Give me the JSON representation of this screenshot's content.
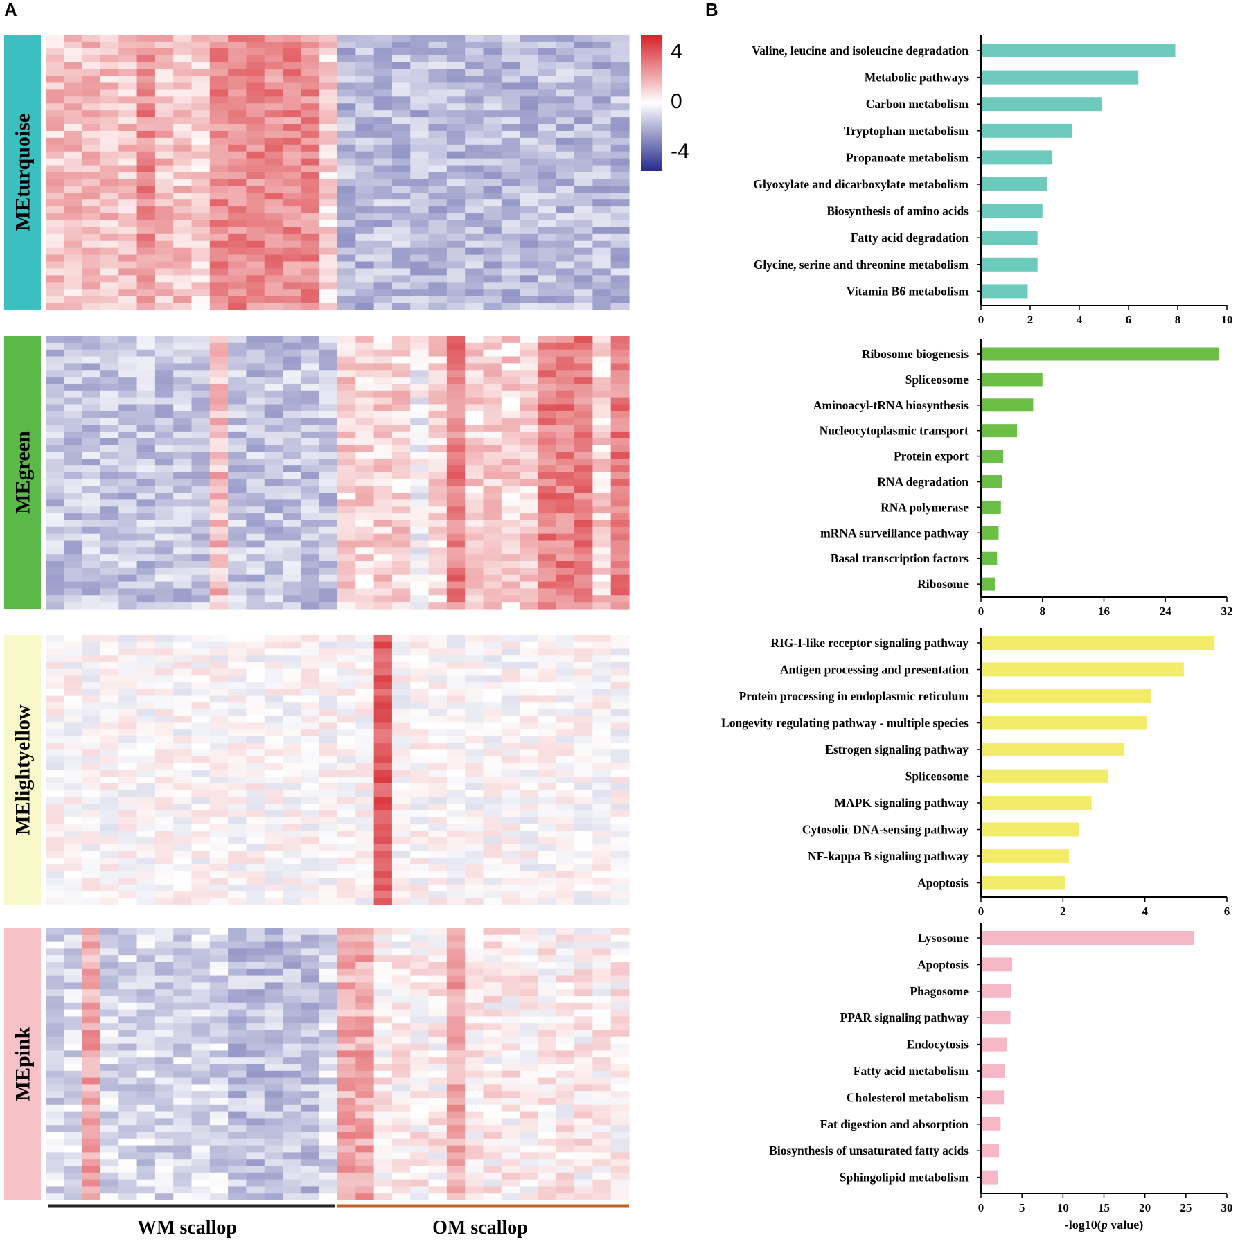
{
  "panels": {
    "a_letter": "A",
    "b_letter": "B"
  },
  "heatmap": {
    "colorbar": {
      "ticks": [
        "4",
        "0",
        "-4"
      ],
      "values": [
        4,
        0,
        -4
      ],
      "range": [
        -5,
        5
      ]
    },
    "group_labels": [
      "WM scallop",
      "OM scallop"
    ],
    "group_colors": [
      "#222222",
      "#c0622a"
    ],
    "modules": [
      {
        "name": "MEturquoise",
        "color": "#3bbfc0",
        "pattern": "WM high, OM low"
      },
      {
        "name": "MEgreen",
        "color": "#5ab947",
        "pattern": "WM low, OM high"
      },
      {
        "name": "MElightyellow",
        "color": "#f8f8c8",
        "pattern": "single OM sample high"
      },
      {
        "name": "MEpink",
        "color": "#f7c2c7",
        "pattern": "mixed"
      }
    ]
  },
  "chart_data": [
    {
      "type": "bar",
      "orientation": "horizontal",
      "module": "MEturquoise",
      "color": "#6dcbbe",
      "categories": [
        "Valine, leucine and isoleucine degradation",
        "Metabolic pathways",
        "Carbon metabolism",
        "Tryptophan metabolism",
        "Propanoate metabolism",
        "Glyoxylate and dicarboxylate metabolism",
        "Biosynthesis of amino acids",
        "Fatty acid degradation",
        "Glycine, serine and threonine metabolism",
        "Vitamin B6 metabolism"
      ],
      "values": [
        7.9,
        6.4,
        4.9,
        3.7,
        2.9,
        2.7,
        2.5,
        2.3,
        2.3,
        1.9
      ],
      "xlim": [
        0,
        10
      ],
      "xticks": [
        0,
        2,
        4,
        6,
        8,
        10
      ],
      "xtick_labels": [
        "0",
        "2",
        "4",
        "6",
        "8",
        "10"
      ],
      "xlabel": ""
    },
    {
      "type": "bar",
      "orientation": "horizontal",
      "module": "MEgreen",
      "color": "#6cbf45",
      "categories": [
        "Ribosome biogenesis",
        "Spliceosome",
        "Aminoacyl-tRNA biosynthesis",
        "Nucleocytoplasmic transport",
        "Protein export",
        "RNA degradation",
        "RNA polymerase",
        "mRNA surveillance pathway",
        "Basal transcription factors",
        "Ribosome"
      ],
      "values": [
        31.0,
        8.0,
        6.8,
        4.7,
        2.9,
        2.7,
        2.6,
        2.3,
        2.1,
        1.8
      ],
      "xlim": [
        0,
        32
      ],
      "xticks": [
        0,
        8,
        16,
        24,
        32
      ],
      "xtick_labels": [
        "0",
        "8",
        "16",
        "24",
        "32"
      ],
      "xlabel": ""
    },
    {
      "type": "bar",
      "orientation": "horizontal",
      "module": "MElightyellow",
      "color": "#f3ec6a",
      "categories": [
        "RIG-I-like receptor signaling pathway",
        "Antigen processing and presentation",
        "Protein processing in endoplasmic reticulum",
        "Longevity regulating pathway - multiple species",
        "Estrogen signaling pathway",
        "Spliceosome",
        "MAPK signaling pathway",
        "Cytosolic DNA-sensing pathway",
        "NF-kappa B signaling pathway",
        "Apoptosis"
      ],
      "values": [
        5.7,
        4.95,
        4.15,
        4.05,
        3.5,
        3.1,
        2.7,
        2.4,
        2.15,
        2.05
      ],
      "xlim": [
        0,
        6
      ],
      "xticks": [
        0,
        2,
        4,
        6
      ],
      "xtick_labels": [
        "0",
        "2",
        "4",
        "6"
      ],
      "xlabel": ""
    },
    {
      "type": "bar",
      "orientation": "horizontal",
      "module": "MEpink",
      "color": "#f6b8c6",
      "categories": [
        "Lysosome",
        "Apoptosis",
        "Phagosome",
        "PPAR signaling pathway",
        "Endocytosis",
        "Fatty acid metabolism",
        "Cholesterol metabolism",
        "Fat digestion and absorption",
        "Biosynthesis of unsaturated fatty acids",
        "Sphingolipid metabolism"
      ],
      "values": [
        26.0,
        3.8,
        3.7,
        3.6,
        3.2,
        2.9,
        2.8,
        2.4,
        2.2,
        2.1
      ],
      "xlim": [
        0,
        30
      ],
      "xticks": [
        0,
        5,
        10,
        15,
        20,
        25,
        30
      ],
      "xtick_labels": [
        "0",
        "5",
        "10",
        "15",
        "20",
        "25",
        "30"
      ],
      "xlabel_pre": "-log10(",
      "xlabel_italic": "p",
      "xlabel_post": " value)"
    }
  ]
}
